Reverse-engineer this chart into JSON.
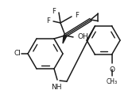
{
  "bg_color": "#ffffff",
  "line_color": "#1a1a1a",
  "line_width": 1.1,
  "figsize": [
    1.71,
    1.38
  ],
  "dpi": 100,
  "xlim": [
    0,
    171
  ],
  "ylim": [
    0,
    138
  ]
}
